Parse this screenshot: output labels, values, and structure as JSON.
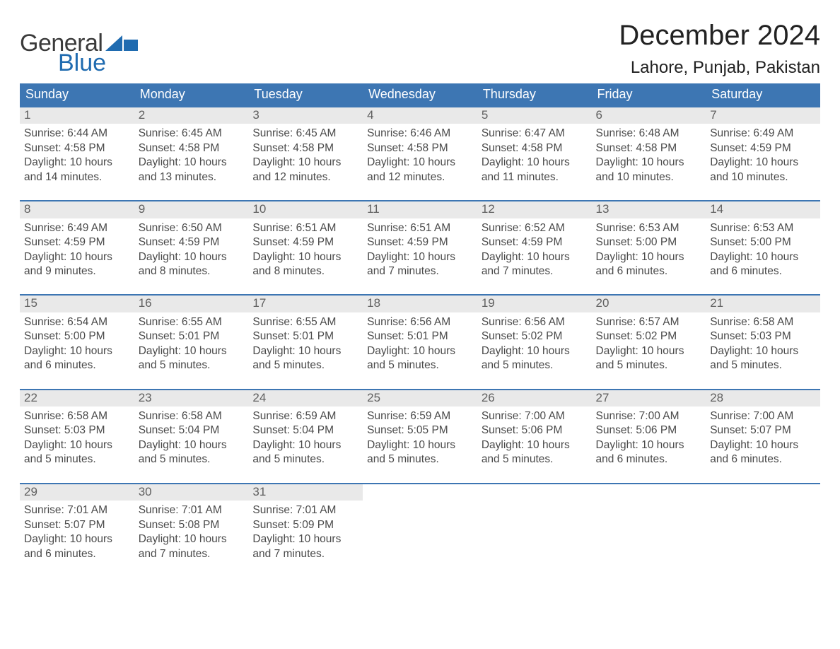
{
  "brand": {
    "part1": "General",
    "part2": "Blue"
  },
  "title": "December 2024",
  "location": "Lahore, Punjab, Pakistan",
  "colors": {
    "header_blue": "#3d76b3",
    "accent_blue": "#1f6bb0",
    "daynum_bg": "#e9e9e9",
    "text": "#333333"
  },
  "dow": [
    "Sunday",
    "Monday",
    "Tuesday",
    "Wednesday",
    "Thursday",
    "Friday",
    "Saturday"
  ],
  "weeks": [
    [
      {
        "n": "1",
        "sr": "6:44 AM",
        "ss": "4:58 PM",
        "dl": "10 hours and 14 minutes."
      },
      {
        "n": "2",
        "sr": "6:45 AM",
        "ss": "4:58 PM",
        "dl": "10 hours and 13 minutes."
      },
      {
        "n": "3",
        "sr": "6:45 AM",
        "ss": "4:58 PM",
        "dl": "10 hours and 12 minutes."
      },
      {
        "n": "4",
        "sr": "6:46 AM",
        "ss": "4:58 PM",
        "dl": "10 hours and 12 minutes."
      },
      {
        "n": "5",
        "sr": "6:47 AM",
        "ss": "4:58 PM",
        "dl": "10 hours and 11 minutes."
      },
      {
        "n": "6",
        "sr": "6:48 AM",
        "ss": "4:58 PM",
        "dl": "10 hours and 10 minutes."
      },
      {
        "n": "7",
        "sr": "6:49 AM",
        "ss": "4:59 PM",
        "dl": "10 hours and 10 minutes."
      }
    ],
    [
      {
        "n": "8",
        "sr": "6:49 AM",
        "ss": "4:59 PM",
        "dl": "10 hours and 9 minutes."
      },
      {
        "n": "9",
        "sr": "6:50 AM",
        "ss": "4:59 PM",
        "dl": "10 hours and 8 minutes."
      },
      {
        "n": "10",
        "sr": "6:51 AM",
        "ss": "4:59 PM",
        "dl": "10 hours and 8 minutes."
      },
      {
        "n": "11",
        "sr": "6:51 AM",
        "ss": "4:59 PM",
        "dl": "10 hours and 7 minutes."
      },
      {
        "n": "12",
        "sr": "6:52 AM",
        "ss": "4:59 PM",
        "dl": "10 hours and 7 minutes."
      },
      {
        "n": "13",
        "sr": "6:53 AM",
        "ss": "5:00 PM",
        "dl": "10 hours and 6 minutes."
      },
      {
        "n": "14",
        "sr": "6:53 AM",
        "ss": "5:00 PM",
        "dl": "10 hours and 6 minutes."
      }
    ],
    [
      {
        "n": "15",
        "sr": "6:54 AM",
        "ss": "5:00 PM",
        "dl": "10 hours and 6 minutes."
      },
      {
        "n": "16",
        "sr": "6:55 AM",
        "ss": "5:01 PM",
        "dl": "10 hours and 5 minutes."
      },
      {
        "n": "17",
        "sr": "6:55 AM",
        "ss": "5:01 PM",
        "dl": "10 hours and 5 minutes."
      },
      {
        "n": "18",
        "sr": "6:56 AM",
        "ss": "5:01 PM",
        "dl": "10 hours and 5 minutes."
      },
      {
        "n": "19",
        "sr": "6:56 AM",
        "ss": "5:02 PM",
        "dl": "10 hours and 5 minutes."
      },
      {
        "n": "20",
        "sr": "6:57 AM",
        "ss": "5:02 PM",
        "dl": "10 hours and 5 minutes."
      },
      {
        "n": "21",
        "sr": "6:58 AM",
        "ss": "5:03 PM",
        "dl": "10 hours and 5 minutes."
      }
    ],
    [
      {
        "n": "22",
        "sr": "6:58 AM",
        "ss": "5:03 PM",
        "dl": "10 hours and 5 minutes."
      },
      {
        "n": "23",
        "sr": "6:58 AM",
        "ss": "5:04 PM",
        "dl": "10 hours and 5 minutes."
      },
      {
        "n": "24",
        "sr": "6:59 AM",
        "ss": "5:04 PM",
        "dl": "10 hours and 5 minutes."
      },
      {
        "n": "25",
        "sr": "6:59 AM",
        "ss": "5:05 PM",
        "dl": "10 hours and 5 minutes."
      },
      {
        "n": "26",
        "sr": "7:00 AM",
        "ss": "5:06 PM",
        "dl": "10 hours and 5 minutes."
      },
      {
        "n": "27",
        "sr": "7:00 AM",
        "ss": "5:06 PM",
        "dl": "10 hours and 6 minutes."
      },
      {
        "n": "28",
        "sr": "7:00 AM",
        "ss": "5:07 PM",
        "dl": "10 hours and 6 minutes."
      }
    ],
    [
      {
        "n": "29",
        "sr": "7:01 AM",
        "ss": "5:07 PM",
        "dl": "10 hours and 6 minutes."
      },
      {
        "n": "30",
        "sr": "7:01 AM",
        "ss": "5:08 PM",
        "dl": "10 hours and 7 minutes."
      },
      {
        "n": "31",
        "sr": "7:01 AM",
        "ss": "5:09 PM",
        "dl": "10 hours and 7 minutes."
      },
      null,
      null,
      null,
      null
    ]
  ],
  "labels": {
    "sunrise": "Sunrise: ",
    "sunset": "Sunset: ",
    "daylight": "Daylight: "
  }
}
